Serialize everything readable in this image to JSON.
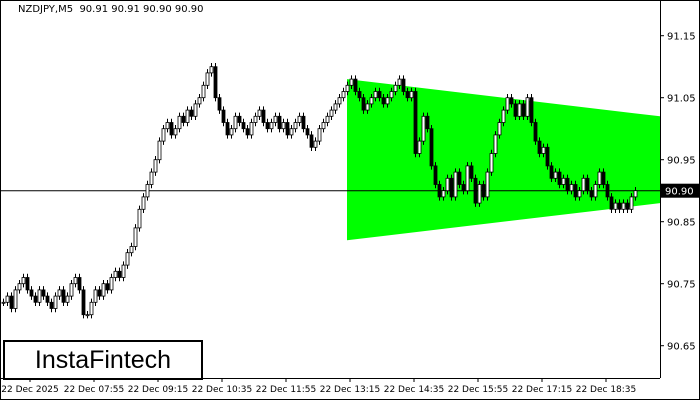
{
  "header": {
    "symbol": "NZDJPY,M5",
    "ohlc_text": "90.91 90.91 90.90 90.90"
  },
  "logo": "InstaFintech",
  "chart_data": {
    "type": "candlestick",
    "symbol": "NZDJPY",
    "timeframe": "M5",
    "ylim": [
      90.61,
      91.21
    ],
    "y_ticks": [
      91.15,
      91.05,
      90.95,
      90.85,
      90.75,
      90.65
    ],
    "x_ticks": [
      "22 Dec 2025",
      "22 Dec 07:55",
      "22 Dec 09:15",
      "22 Dec 10:35",
      "22 Dec 11:55",
      "22 Dec 13:15",
      "22 Dec 14:35",
      "22 Dec 15:55",
      "22 Dec 17:15",
      "22 Dec 18:35"
    ],
    "current_price": 90.9,
    "current_price_label": "90.90",
    "colors": {
      "pattern": "#00ff00",
      "candle": "#000000",
      "background": "#ffffff"
    },
    "pattern": {
      "name": "symmetrical triangle",
      "start_candle": 87,
      "start_upper": 91.08,
      "start_lower": 90.82,
      "end_upper": 91.02,
      "end_lower": 90.88
    },
    "closes": [
      90.72,
      90.73,
      90.71,
      90.74,
      90.75,
      90.76,
      90.74,
      90.73,
      90.72,
      90.74,
      90.73,
      90.72,
      90.71,
      90.73,
      90.74,
      90.72,
      90.73,
      90.75,
      90.76,
      90.74,
      90.7,
      90.7,
      90.72,
      90.74,
      90.73,
      90.75,
      90.74,
      90.76,
      90.77,
      90.76,
      90.78,
      90.8,
      90.81,
      90.84,
      90.87,
      90.89,
      90.91,
      90.93,
      90.95,
      90.98,
      91.0,
      91.01,
      90.99,
      91.0,
      91.02,
      91.01,
      91.03,
      91.02,
      91.04,
      91.05,
      91.07,
      91.09,
      91.1,
      91.05,
      91.03,
      91.01,
      90.99,
      91.0,
      91.02,
      91.01,
      91.0,
      90.99,
      91.01,
      91.02,
      91.03,
      91.01,
      91.0,
      91.01,
      91.02,
      91.0,
      91.01,
      90.99,
      91.0,
      91.01,
      91.02,
      91.0,
      90.99,
      90.97,
      90.98,
      91.0,
      91.01,
      91.02,
      91.03,
      91.04,
      91.05,
      91.06,
      91.07,
      91.08,
      91.06,
      91.05,
      91.03,
      91.04,
      91.05,
      91.06,
      91.05,
      91.04,
      91.05,
      91.06,
      91.07,
      91.08,
      91.06,
      91.05,
      91.06,
      90.96,
      90.98,
      91.02,
      91.0,
      90.94,
      90.91,
      90.89,
      90.9,
      90.92,
      90.89,
      90.93,
      90.91,
      90.9,
      90.94,
      90.92,
      90.88,
      90.91,
      90.89,
      90.93,
      90.96,
      90.99,
      91.01,
      91.03,
      91.05,
      91.04,
      91.02,
      91.04,
      91.02,
      91.05,
      91.01,
      90.98,
      90.96,
      90.97,
      90.94,
      90.92,
      90.93,
      90.91,
      90.92,
      90.9,
      90.91,
      90.89,
      90.9,
      90.92,
      90.9,
      90.89,
      90.91,
      90.93,
      90.91,
      90.89,
      90.87,
      90.88,
      90.87,
      90.88,
      90.87,
      90.89,
      90.9
    ]
  }
}
